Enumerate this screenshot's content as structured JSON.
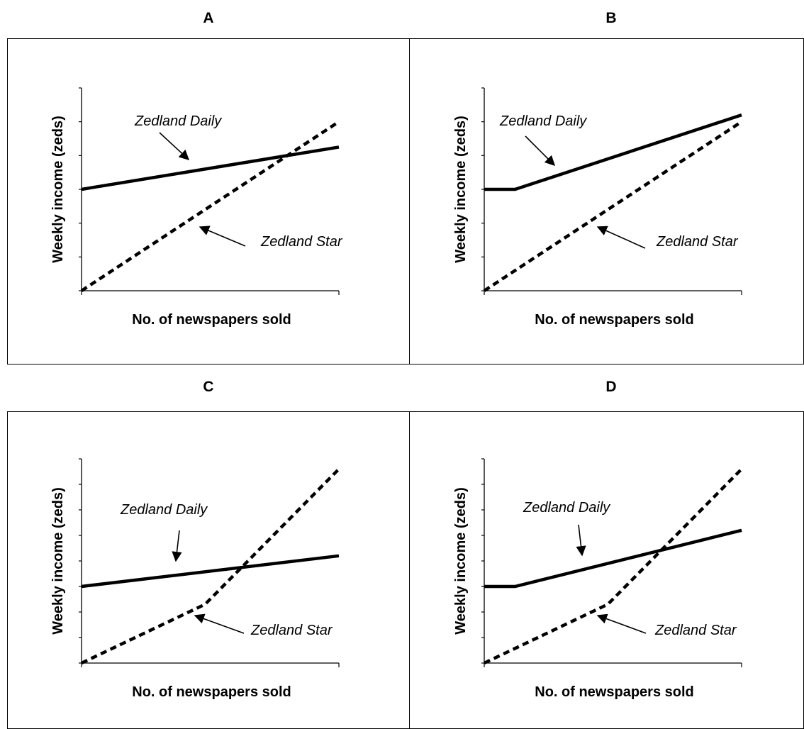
{
  "panels": [
    {
      "id": "A",
      "label": "A"
    },
    {
      "id": "B",
      "label": "B"
    },
    {
      "id": "C",
      "label": "C"
    },
    {
      "id": "D",
      "label": "D"
    }
  ],
  "chart_data": [
    {
      "panel": "A",
      "type": "line",
      "xlabel": "No. of newspapers sold",
      "ylabel": "Weekly income (zeds)",
      "xlim": [
        0,
        10
      ],
      "ylim": [
        0,
        6
      ],
      "y_ticks": 6,
      "x_tick_labels": false,
      "y_tick_labels": false,
      "grid": false,
      "series": [
        {
          "name": "Zedland Daily",
          "style": "solid",
          "points": [
            [
              0,
              3.0
            ],
            [
              10,
              4.25
            ]
          ]
        },
        {
          "name": "Zedland Star",
          "style": "dashed",
          "points": [
            [
              0,
              0
            ],
            [
              10,
              5.0
            ]
          ]
        }
      ],
      "annotations": [
        {
          "text": "Zedland Daily",
          "series": "Zedland Daily"
        },
        {
          "text": "Zedland Star",
          "series": "Zedland Star"
        }
      ]
    },
    {
      "panel": "B",
      "type": "line",
      "xlabel": "No. of newspapers sold",
      "ylabel": "Weekly income (zeds)",
      "xlim": [
        0,
        10
      ],
      "ylim": [
        0,
        6
      ],
      "y_ticks": 6,
      "x_tick_labels": false,
      "y_tick_labels": false,
      "grid": false,
      "series": [
        {
          "name": "Zedland Daily",
          "style": "solid",
          "points": [
            [
              0,
              3.0
            ],
            [
              1.2,
              3.0
            ],
            [
              10,
              5.2
            ]
          ]
        },
        {
          "name": "Zedland Star",
          "style": "dashed",
          "points": [
            [
              0,
              0
            ],
            [
              10,
              5.0
            ]
          ]
        }
      ],
      "annotations": [
        {
          "text": "Zedland Daily",
          "series": "Zedland Daily"
        },
        {
          "text": "Zedland Star",
          "series": "Zedland Star"
        }
      ]
    },
    {
      "panel": "C",
      "type": "line",
      "xlabel": "No. of newspapers sold",
      "ylabel": "Weekly income (zeds)",
      "xlim": [
        0,
        10
      ],
      "ylim": [
        0,
        8
      ],
      "y_ticks": 8,
      "x_tick_labels": false,
      "y_tick_labels": false,
      "grid": false,
      "series": [
        {
          "name": "Zedland Daily",
          "style": "solid",
          "points": [
            [
              0,
              3.0
            ],
            [
              10,
              4.2
            ]
          ]
        },
        {
          "name": "Zedland Star",
          "style": "dashed",
          "points": [
            [
              0,
              0
            ],
            [
              4.8,
              2.3
            ],
            [
              10,
              7.6
            ]
          ]
        }
      ],
      "annotations": [
        {
          "text": "Zedland Daily",
          "series": "Zedland Daily"
        },
        {
          "text": "Zedland Star",
          "series": "Zedland Star"
        }
      ]
    },
    {
      "panel": "D",
      "type": "line",
      "xlabel": "No. of newspapers sold",
      "ylabel": "Weekly income (zeds)",
      "xlim": [
        0,
        10
      ],
      "ylim": [
        0,
        8
      ],
      "y_ticks": 8,
      "x_tick_labels": false,
      "y_tick_labels": false,
      "grid": false,
      "series": [
        {
          "name": "Zedland Daily",
          "style": "solid",
          "points": [
            [
              0,
              3.0
            ],
            [
              1.2,
              3.0
            ],
            [
              10,
              5.2
            ]
          ]
        },
        {
          "name": "Zedland Star",
          "style": "dashed",
          "points": [
            [
              0,
              0
            ],
            [
              4.8,
              2.3
            ],
            [
              10,
              7.6
            ]
          ]
        }
      ],
      "annotations": [
        {
          "text": "Zedland Daily",
          "series": "Zedland Daily"
        },
        {
          "text": "Zedland Star",
          "series": "Zedland Star"
        }
      ]
    }
  ]
}
